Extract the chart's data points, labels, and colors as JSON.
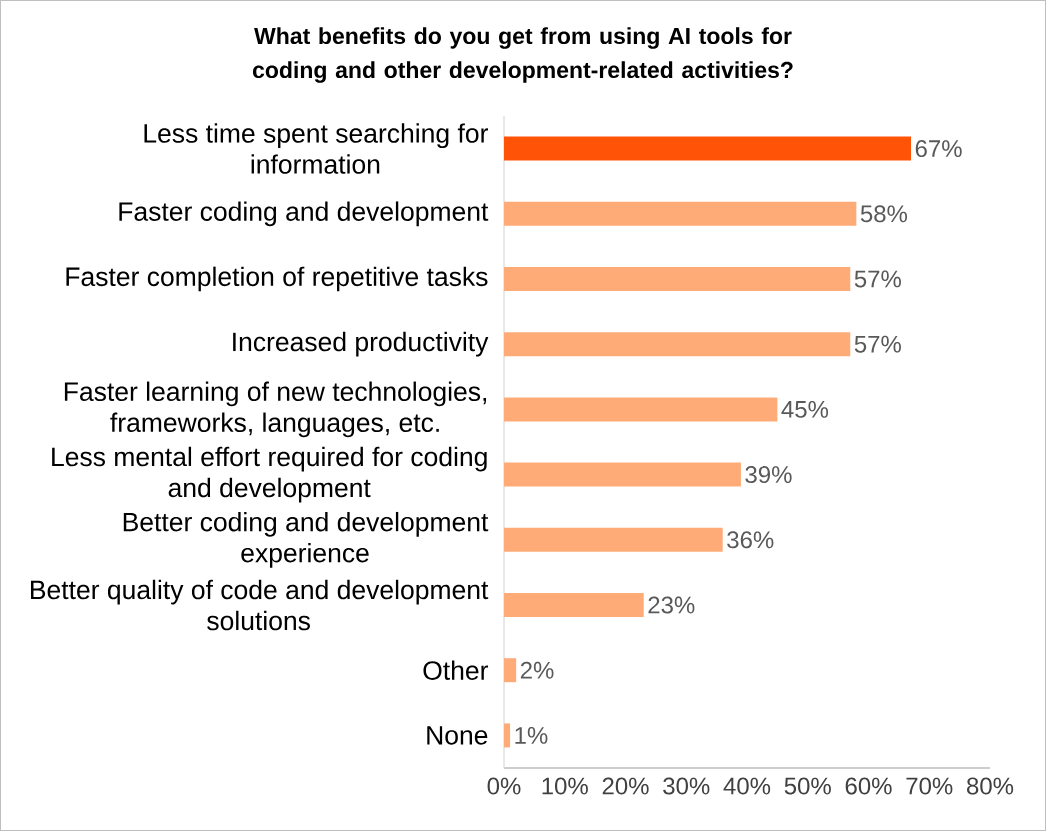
{
  "chart_data": {
    "type": "bar",
    "orientation": "horizontal",
    "title": "What benefits do you get from using AI tools for coding and other development-related activities?",
    "categories": [
      "Less time spent searching for information",
      "Faster coding and development",
      "Faster completion of repetitive tasks",
      "Increased productivity",
      "Faster learning of new technologies, frameworks, languages, etc.",
      "Less mental effort required for coding and development",
      "Better coding and development experience",
      "Better quality of code and development solutions",
      "Other",
      "None"
    ],
    "values": [
      67,
      58,
      57,
      57,
      45,
      39,
      36,
      23,
      2,
      1
    ],
    "value_labels": [
      "67%",
      "58%",
      "57%",
      "57%",
      "45%",
      "39%",
      "36%",
      "23%",
      "2%",
      "1%"
    ],
    "colors": [
      "#ff5308",
      "#ffab78",
      "#ffab78",
      "#ffab78",
      "#ffab78",
      "#ffab78",
      "#ffab78",
      "#ffab78",
      "#ffab78",
      "#ffab78"
    ],
    "xlim": [
      0,
      80
    ],
    "xticks": [
      {
        "value": 0,
        "label": "0%"
      },
      {
        "value": 10,
        "label": "10%"
      },
      {
        "value": 20,
        "label": "20%"
      },
      {
        "value": 30,
        "label": "30%"
      },
      {
        "value": 40,
        "label": "40%"
      },
      {
        "value": 50,
        "label": "50%"
      },
      {
        "value": 60,
        "label": "60%"
      },
      {
        "value": 70,
        "label": "70%"
      },
      {
        "value": 80,
        "label": "80%"
      }
    ]
  }
}
